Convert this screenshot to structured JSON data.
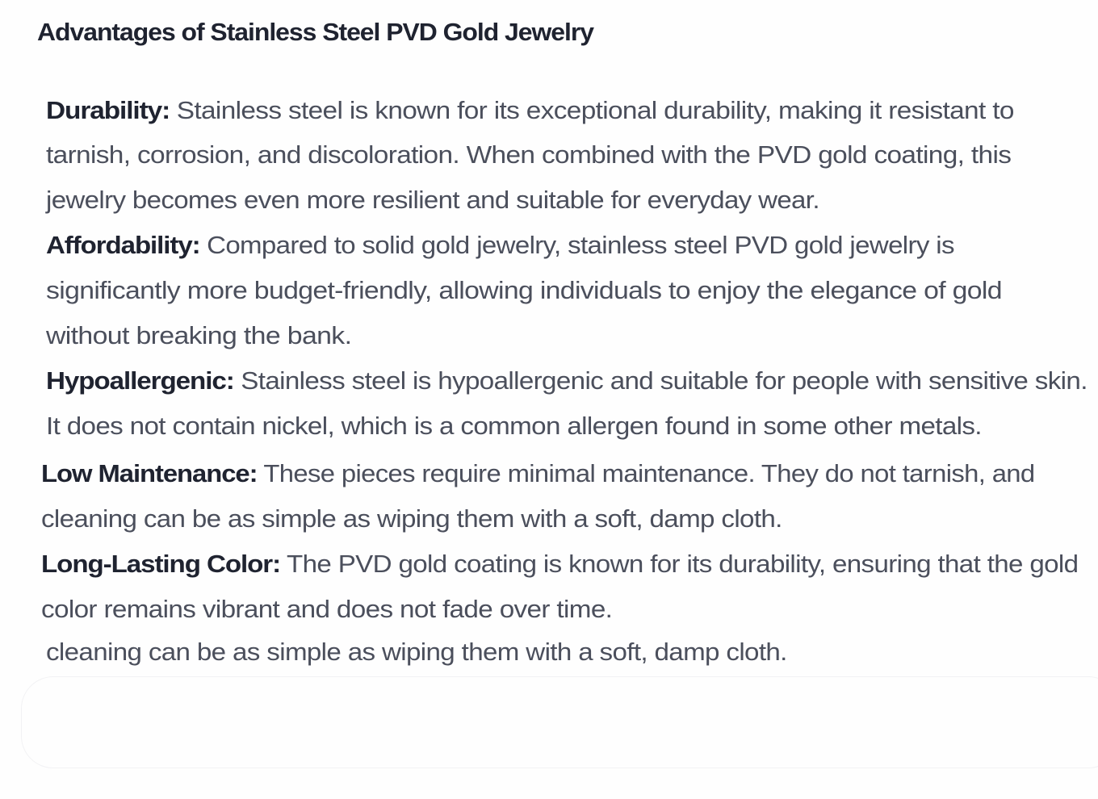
{
  "title": "Advantages of Stainless Steel PVD Gold Jewelry",
  "items": [
    {
      "label": "Durability:",
      "lines": [
        "Stainless steel is known for its exceptional durability, making it resistant to",
        "tarnish, corrosion, and discoloration. When combined with the PVD gold coating, this",
        "jewelry becomes even more resilient and suitable for everyday wear."
      ]
    },
    {
      "label": "Affordability:",
      "lines": [
        "Compared to solid gold jewelry, stainless steel PVD gold jewelry is",
        "significantly more budget-friendly, allowing individuals to enjoy the elegance of gold",
        "without breaking the bank."
      ]
    },
    {
      "label": "Hypoallergenic:",
      "lines": [
        "Stainless steel is hypoallergenic and suitable for people with sensitive skin.",
        "It does not contain nickel, which is a common allergen found in some other metals."
      ]
    },
    {
      "label": "Low Maintenance:",
      "lines": [
        "These pieces require minimal maintenance. They do not tarnish, and",
        "cleaning can be as simple as wiping them with a soft, damp cloth."
      ]
    },
    {
      "label": "Long-Lasting Color:",
      "lines": [
        "The PVD gold coating is known for its durability, ensuring that the gold",
        "color remains vibrant and does not fade over time."
      ]
    }
  ],
  "trailing_line": "cleaning can be as simple as wiping them with a soft, damp cloth."
}
